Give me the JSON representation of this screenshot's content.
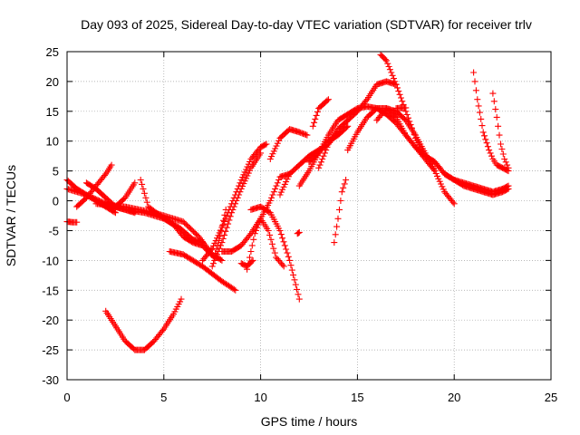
{
  "chart_data": {
    "type": "scatter",
    "title": "Day 093 of 2025, Sidereal Day-to-day VTEC variation (SDTVAR) for receiver trlv",
    "xlabel": "GPS time / hours",
    "ylabel": "SDTVAR / TECUs",
    "xlim": [
      0,
      25
    ],
    "ylim": [
      -30,
      25
    ],
    "xticks": [
      "0",
      "5",
      "10",
      "15",
      "20",
      "25"
    ],
    "yticks": [
      "25",
      "20",
      "15",
      "10",
      "5",
      "0",
      "-5",
      "-10",
      "-15",
      "-20",
      "-25",
      "-30"
    ],
    "grid": true,
    "marker": "plus",
    "color": "#ff0000",
    "tracks": [
      {
        "x": [
          0.0,
          0.5,
          1.0,
          1.5,
          2.0,
          2.5
        ],
        "y": [
          3.5,
          2.0,
          1.0,
          0.0,
          -1.0,
          -2.0
        ]
      },
      {
        "x": [
          0.0,
          0.3,
          0.5
        ],
        "y": [
          -3.5,
          -3.6,
          -3.6
        ]
      },
      {
        "x": [
          0.0,
          1.0,
          2.0,
          3.0,
          4.0,
          5.0,
          5.8,
          6.5,
          7.0
        ],
        "y": [
          2.0,
          1.0,
          -0.5,
          -1.5,
          -2.0,
          -3.0,
          -4.5,
          -6.5,
          -7.0
        ]
      },
      {
        "x": [
          0.5,
          1.0,
          1.5,
          2.0,
          2.3
        ],
        "y": [
          -1.0,
          0.5,
          2.5,
          4.5,
          6.0
        ]
      },
      {
        "x": [
          1.0,
          1.5,
          2.0,
          2.5,
          3.0,
          3.5
        ],
        "y": [
          3.0,
          2.0,
          0.5,
          -1.0,
          -1.5,
          -2.0
        ]
      },
      {
        "x": [
          1.8,
          2.5,
          3.0,
          3.5
        ],
        "y": [
          -0.5,
          -1.0,
          0.5,
          3.0
        ]
      },
      {
        "x": [
          1.5,
          3.0,
          4.5,
          6.0,
          6.8,
          7.5,
          8.0
        ],
        "y": [
          -0.5,
          -1.0,
          -2.0,
          -3.5,
          -6.0,
          -9.0,
          -10.0
        ]
      },
      {
        "x": [
          3.8,
          4.2,
          4.8,
          5.5,
          6.0,
          6.5,
          7.0
        ],
        "y": [
          3.5,
          -1.0,
          -2.5,
          -4.0,
          -6.0,
          -7.0,
          -7.5
        ]
      },
      {
        "x": [
          2.0,
          2.5,
          3.0,
          3.5,
          4.0,
          4.5,
          5.0,
          5.5,
          5.9
        ],
        "y": [
          -18.5,
          -21.0,
          -23.5,
          -25.0,
          -25.0,
          -23.5,
          -21.5,
          -19.0,
          -16.5
        ]
      },
      {
        "x": [
          5.3,
          6.0,
          7.0,
          8.0,
          8.7
        ],
        "y": [
          -8.5,
          -9.0,
          -11.0,
          -13.5,
          -15.0
        ]
      },
      {
        "x": [
          7.0,
          7.5,
          8.0,
          8.5,
          9.0,
          9.5,
          10.0,
          10.3
        ],
        "y": [
          -10.0,
          -8.0,
          -4.5,
          -0.5,
          3.5,
          7.0,
          9.0,
          9.5
        ]
      },
      {
        "x": [
          7.5,
          8.0,
          8.5,
          9.0,
          9.5,
          10.0
        ],
        "y": [
          -11.0,
          -7.0,
          -2.0,
          2.0,
          5.5,
          8.0
        ]
      },
      {
        "x": [
          7.0,
          7.3,
          7.6,
          7.9,
          8.2
        ],
        "y": [
          -7.5,
          -8.5,
          -9.5,
          -6.0,
          -1.5
        ]
      },
      {
        "x": [
          8.0,
          8.5,
          9.0,
          9.5,
          10.0,
          10.5,
          11.0,
          11.5
        ],
        "y": [
          -8.5,
          -8.5,
          -7.5,
          -5.5,
          -3.0,
          0.0,
          4.0,
          4.5
        ]
      },
      {
        "x": [
          9.5,
          10.0,
          10.5,
          11.0,
          11.5,
          12.0
        ],
        "y": [
          -1.5,
          -1.0,
          -2.0,
          -5.0,
          -10.0,
          -16.5
        ]
      },
      {
        "x": [
          9.3,
          9.7,
          10.0,
          10.4,
          10.8,
          11.2
        ],
        "y": [
          -11.5,
          -5.5,
          -3.0,
          -5.0,
          -9.5,
          -11.0
        ]
      },
      {
        "x": [
          9.0,
          9.3,
          9.6
        ],
        "y": [
          -10.5,
          -11.0,
          -10.0
        ]
      },
      {
        "x": [
          10.5,
          11.0,
          11.5,
          12.0,
          12.4
        ],
        "y": [
          7.0,
          10.5,
          12.0,
          11.5,
          11.0
        ]
      },
      {
        "x": [
          11.0,
          11.5,
          12.0,
          12.5,
          13.0,
          13.5,
          14.0
        ],
        "y": [
          1.0,
          4.5,
          6.0,
          7.5,
          8.5,
          9.5,
          11.5
        ]
      },
      {
        "x": [
          12.0,
          12.5,
          13.0,
          13.5,
          14.0,
          14.5
        ],
        "y": [
          2.5,
          5.0,
          8.0,
          10.0,
          11.0,
          12.5
        ]
      },
      {
        "x": [
          12.5,
          13.0,
          13.5,
          14.0,
          14.5,
          15.0,
          15.5,
          16.0,
          16.5,
          17.0,
          17.5,
          18.0,
          18.5,
          19.0
        ],
        "y": [
          6.5,
          8.0,
          11.0,
          13.5,
          14.5,
          15.5,
          15.8,
          15.5,
          14.5,
          13.0,
          11.0,
          9.0,
          7.0,
          5.0
        ]
      },
      {
        "x": [
          13.0,
          13.5,
          14.0,
          14.5,
          15.0,
          15.5,
          16.0,
          16.5,
          17.0
        ],
        "y": [
          5.5,
          9.5,
          12.0,
          13.5,
          15.0,
          17.0,
          19.5,
          20.0,
          19.5
        ]
      },
      {
        "x": [
          12.7,
          13.0,
          13.5
        ],
        "y": [
          12.5,
          15.5,
          17.0
        ]
      },
      {
        "x": [
          11.9,
          12.0
        ],
        "y": [
          -5.5,
          -5.3
        ]
      },
      {
        "x": [
          13.8,
          14.0,
          14.2,
          14.4
        ],
        "y": [
          -7.0,
          -3.0,
          1.5,
          3.5
        ]
      },
      {
        "x": [
          14.5,
          15.0,
          15.5,
          16.0,
          16.5,
          17.0,
          17.5,
          18.0,
          18.5,
          19.0,
          19.5,
          20.0,
          20.5,
          21.0,
          21.5,
          22.0,
          22.5,
          22.8
        ],
        "y": [
          8.5,
          11.5,
          14.0,
          15.5,
          15.5,
          14.0,
          11.0,
          9.0,
          7.5,
          6.5,
          4.5,
          3.5,
          2.5,
          2.0,
          1.5,
          1.0,
          1.5,
          2.0
        ]
      },
      {
        "x": [
          16.2,
          16.5,
          17.0,
          17.5,
          18.0,
          18.5,
          19.0,
          19.5,
          20.0,
          20.5,
          21.0,
          21.5,
          22.0,
          22.5,
          22.8
        ],
        "y": [
          24.5,
          23.5,
          19.5,
          15.0,
          10.5,
          7.5,
          6.5,
          4.5,
          3.5,
          3.0,
          2.5,
          2.0,
          1.5,
          2.0,
          2.5
        ]
      },
      {
        "x": [
          16.0,
          16.5,
          17.0,
          17.5,
          18.0,
          18.5,
          19.0,
          19.5,
          20.0
        ],
        "y": [
          13.5,
          15.5,
          15.0,
          13.5,
          11.0,
          8.0,
          5.0,
          1.5,
          -0.5
        ]
      },
      {
        "x": [
          21.0,
          21.2,
          21.5,
          21.8,
          22.0,
          22.2,
          22.5,
          22.8
        ],
        "y": [
          21.5,
          17.0,
          11.5,
          8.5,
          7.0,
          6.0,
          5.5,
          5.0
        ]
      },
      {
        "x": [
          22.0,
          22.2,
          22.4,
          22.6,
          22.8
        ],
        "y": [
          18.0,
          14.0,
          9.5,
          7.0,
          5.5
        ]
      },
      {
        "x": [
          17.0,
          17.5
        ],
        "y": [
          15.5,
          15.6
        ]
      }
    ]
  }
}
